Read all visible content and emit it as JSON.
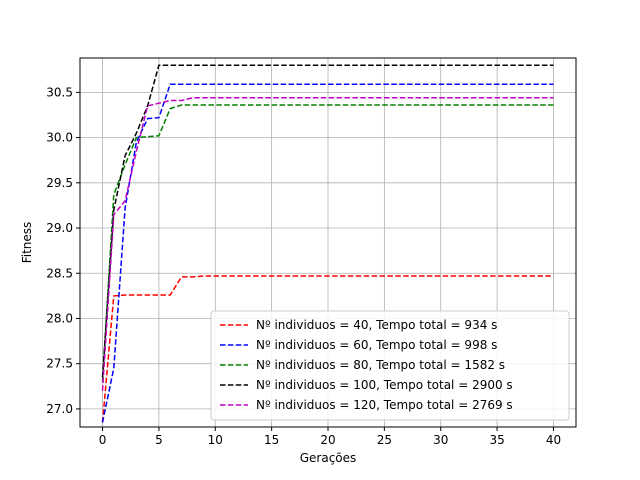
{
  "chart_data": {
    "type": "line",
    "xlabel": "Gerações",
    "ylabel": "Fitness",
    "xlim": [
      -2,
      42
    ],
    "ylim": [
      26.8,
      30.88
    ],
    "x_ticks": [
      0,
      5,
      10,
      15,
      20,
      25,
      30,
      35,
      40
    ],
    "y_ticks": [
      27.0,
      27.5,
      28.0,
      28.5,
      29.0,
      29.5,
      30.0,
      30.5
    ],
    "grid": true,
    "legend_position": "lower-right",
    "series": [
      {
        "name": "Nº individuos = 40, Tempo total  = 934 s",
        "color": "#ff0000",
        "x": [
          0,
          1,
          2,
          3,
          4,
          5,
          6,
          7,
          8,
          9,
          40
        ],
        "y": [
          26.85,
          28.25,
          28.26,
          28.26,
          28.26,
          28.26,
          28.26,
          28.46,
          28.46,
          28.47,
          28.47
        ]
      },
      {
        "name": "Nº individuos = 60, Tempo total  = 998 s",
        "color": "#0000ff",
        "x": [
          0,
          1,
          2,
          3,
          4,
          5,
          6,
          7,
          40
        ],
        "y": [
          26.85,
          27.45,
          29.22,
          29.95,
          30.21,
          30.22,
          30.59,
          30.59,
          30.59
        ]
      },
      {
        "name": "Nº individuos = 80, Tempo total  = 1582 s",
        "color": "#008000",
        "x": [
          0,
          1,
          2,
          3,
          4,
          5,
          6,
          7,
          40
        ],
        "y": [
          27.3,
          29.37,
          29.7,
          30.0,
          30.01,
          30.02,
          30.32,
          30.36,
          30.36
        ]
      },
      {
        "name": "Nº individuos = 100, Tempo total  = 2900 s",
        "color": "#000000",
        "x": [
          0,
          1,
          2,
          3,
          4,
          5,
          6,
          40
        ],
        "y": [
          27.35,
          29.2,
          29.8,
          30.05,
          30.35,
          30.8,
          30.8,
          30.8
        ]
      },
      {
        "name": "Nº individuos = 120, Tempo total  = 2769 s",
        "color": "#bf00bf",
        "x": [
          0,
          1,
          2,
          3,
          4,
          5,
          6,
          7,
          8,
          40
        ],
        "y": [
          27.2,
          29.15,
          29.3,
          29.85,
          30.35,
          30.38,
          30.41,
          30.41,
          30.44,
          30.44
        ]
      }
    ]
  }
}
